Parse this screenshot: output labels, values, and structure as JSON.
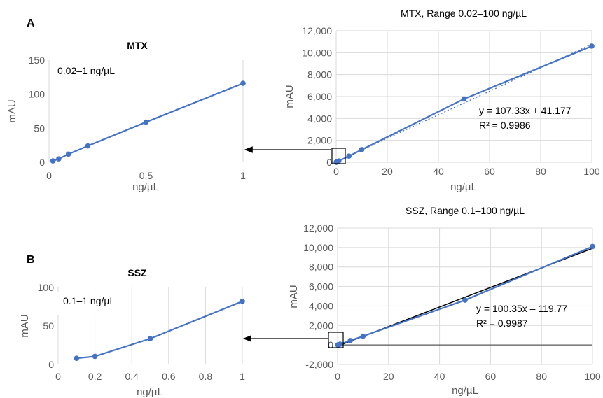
{
  "panels": [
    {
      "label": "A"
    },
    {
      "label": "B"
    }
  ],
  "colors": {
    "series": "#4472C4",
    "fit": "#000000"
  },
  "chart_data": [
    {
      "id": "mtx-low",
      "type": "line",
      "title": "MTX",
      "xlabel": "ng/µL",
      "ylabel": "mAU",
      "xlim": [
        0,
        1
      ],
      "ylim": [
        0,
        150
      ],
      "xticks": [
        0,
        0.5,
        1
      ],
      "yticks": [
        0,
        50,
        100,
        150
      ],
      "grid": "vertical",
      "annotation": "0.02–1 ng/µL",
      "series": [
        {
          "x": [
            0.02,
            0.05,
            0.1,
            0.2,
            0.5,
            1
          ],
          "y": [
            2,
            5,
            12,
            24,
            59,
            116
          ]
        }
      ]
    },
    {
      "id": "mtx-full",
      "type": "line",
      "title": "MTX, Range 0.02–100 ng/µL",
      "xlabel": "ng/µL",
      "ylabel": "mAU",
      "xlim": [
        0,
        100
      ],
      "ylim": [
        0,
        12000
      ],
      "xticks": [
        0,
        20,
        40,
        60,
        80,
        100
      ],
      "yticks": [
        0,
        2000,
        4000,
        6000,
        8000,
        10000,
        12000
      ],
      "ytick_labels": [
        "0",
        "2,000",
        "4,000",
        "6,000",
        "8,000",
        "10,000",
        "12,000"
      ],
      "grid": "both",
      "series": [
        {
          "x": [
            0.02,
            0.05,
            0.1,
            0.2,
            0.5,
            1,
            5,
            10,
            50,
            100
          ],
          "y": [
            2,
            5,
            12,
            24,
            59,
            116,
            560,
            1150,
            5780,
            10600
          ]
        }
      ],
      "trendline": {
        "style": "dotted",
        "slope": 107.33,
        "intercept": 41.177,
        "equation": "y = 107.33x + 41.177",
        "r2": "R² = 0.9986"
      }
    },
    {
      "id": "ssz-low",
      "type": "line",
      "title": "SSZ",
      "xlabel": "ng/µL",
      "ylabel": "mAU",
      "xlim": [
        0,
        1
      ],
      "ylim": [
        0,
        100
      ],
      "xticks": [
        0,
        0.2,
        0.4,
        0.6,
        0.8,
        1
      ],
      "yticks": [
        0,
        50,
        100
      ],
      "grid": "vertical",
      "annotation": "0.1–1 ng/µL",
      "series": [
        {
          "x": [
            0.1,
            0.2,
            0.5,
            1
          ],
          "y": [
            8,
            10.5,
            33.5,
            82
          ]
        }
      ]
    },
    {
      "id": "ssz-full",
      "type": "line",
      "title": "SSZ, Range 0.1–100 ng/µL",
      "xlabel": "ng/µL",
      "ylabel": "mAU",
      "xlim": [
        0,
        100
      ],
      "ylim": [
        -2000,
        12000
      ],
      "xticks": [
        0,
        20,
        40,
        60,
        80,
        100
      ],
      "yticks": [
        -2000,
        0,
        2000,
        4000,
        6000,
        8000,
        10000,
        12000
      ],
      "ytick_labels": [
        "-2,000",
        "0",
        "2,000",
        "4,000",
        "6,000",
        "8,000",
        "10,000",
        "12,000"
      ],
      "grid": "both",
      "series": [
        {
          "x": [
            0.1,
            0.2,
            0.5,
            1,
            5,
            10,
            50,
            100
          ],
          "y": [
            8,
            10.5,
            33.5,
            82,
            450,
            900,
            4600,
            10100
          ]
        }
      ],
      "trendline": {
        "style": "solid",
        "slope": 100.35,
        "intercept": -119.77,
        "equation": "y = 100.35x – 119.77",
        "r2": "R² = 0.9987"
      }
    }
  ]
}
